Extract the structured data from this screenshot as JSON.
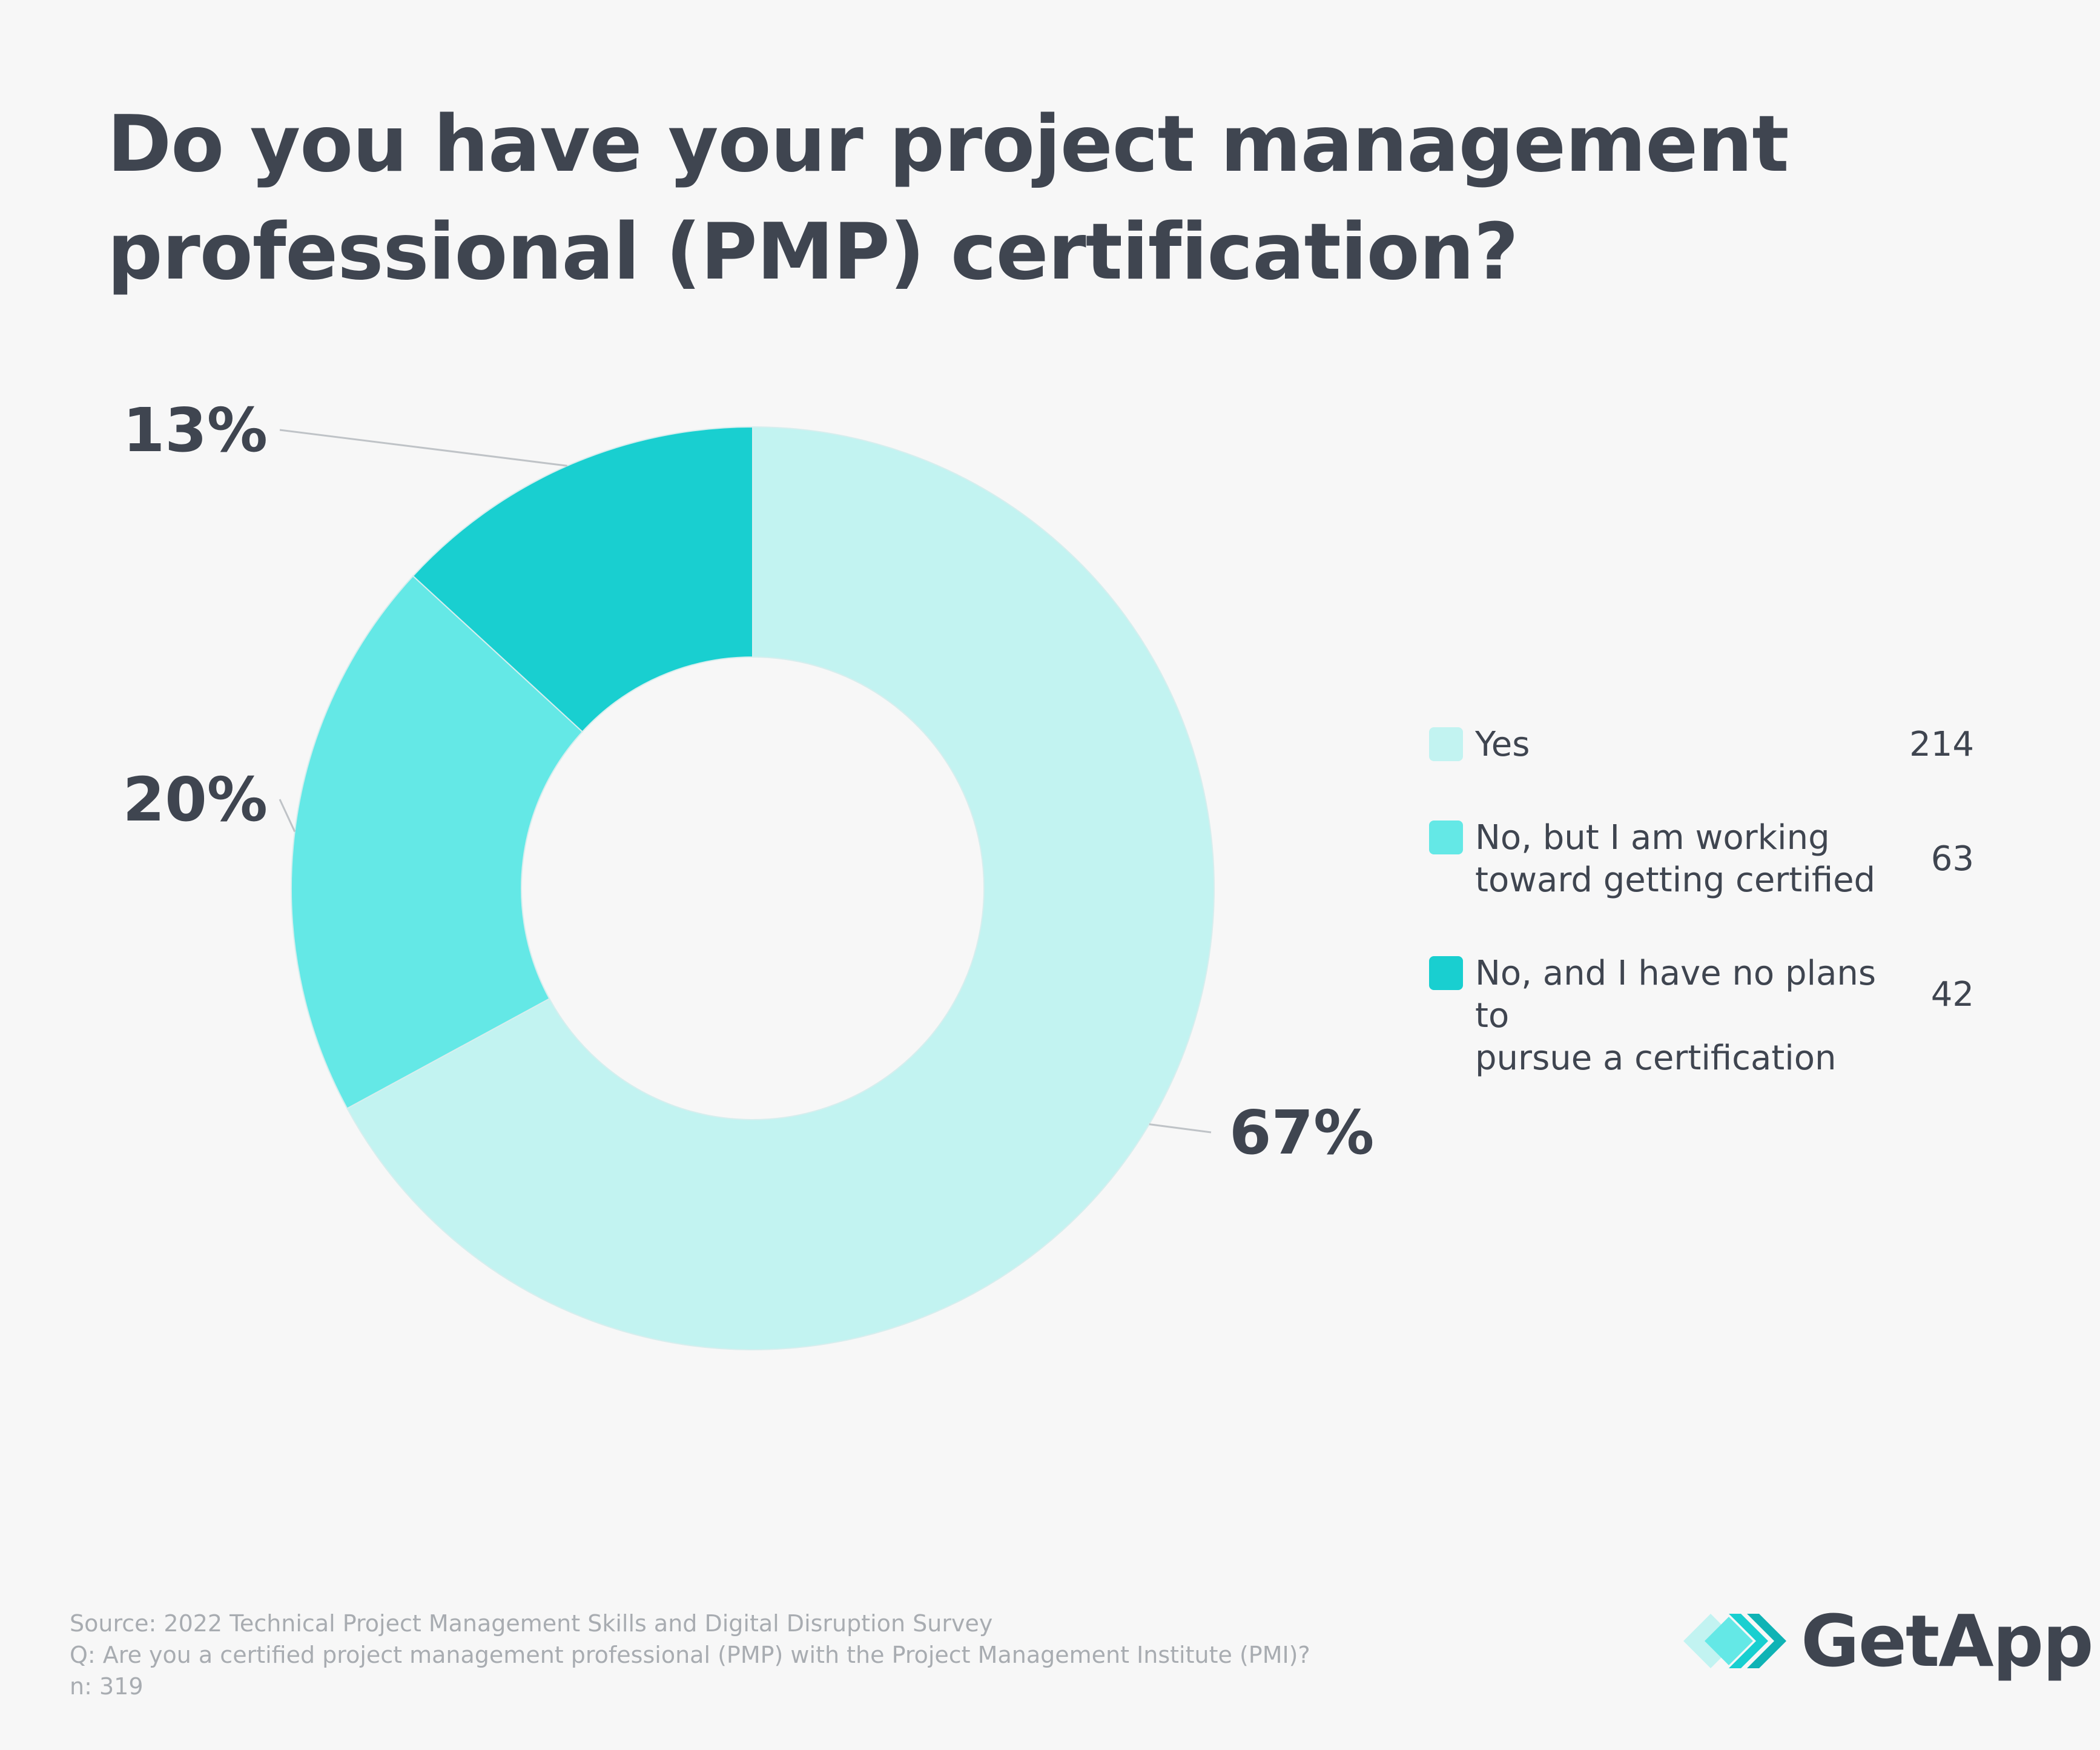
{
  "title_lines": [
    "Do you have your project management",
    "professional (PMP) certification?"
  ],
  "chart_data": {
    "type": "pie",
    "donut": true,
    "categories": [
      "Yes",
      "No, but I am working toward getting certified",
      "No, and I have no plans to pursue a certification"
    ],
    "values": [
      214,
      63,
      42
    ],
    "percent_labels": [
      "67%",
      "20%",
      "13%"
    ],
    "colors": [
      "#c2f3f1",
      "#64e8e6",
      "#19cfd0"
    ],
    "legend_position": "right"
  },
  "legend": [
    {
      "label_lines": [
        "Yes"
      ],
      "value": "214"
    },
    {
      "label_lines": [
        "No, but I am working",
        "toward getting certified"
      ],
      "value": "63"
    },
    {
      "label_lines": [
        "No, and I have no plans to",
        "pursue a certification"
      ],
      "value": "42"
    }
  ],
  "footer": {
    "source": "Source: 2022 Technical Project Management Skills and Digital Disruption Survey",
    "question": "Q: Are you a certified project management professional (PMP) with the Project Management Institute (PMI)?",
    "n": "n: 319"
  },
  "logo": {
    "text": "GetApp"
  }
}
